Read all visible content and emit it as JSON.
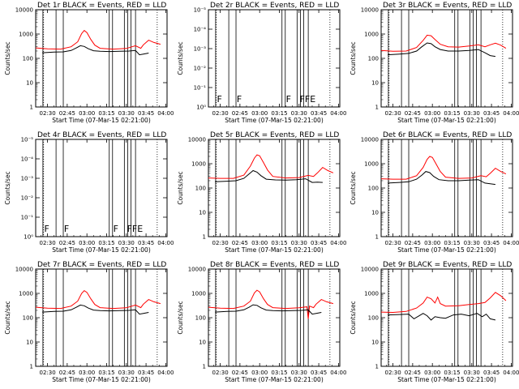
{
  "chart_data": {
    "type": "line",
    "layout": "3x3 grid",
    "x_axis": {
      "label": "Start Time (07-Mar-15 02:21:00)",
      "ticks": [
        "02:30",
        "02:45",
        "03:00",
        "03:15",
        "03:30",
        "03:45",
        "04:00"
      ],
      "tick_minutes": [
        30,
        45,
        60,
        75,
        90,
        105,
        120
      ],
      "range_minutes": [
        21,
        121
      ]
    },
    "y_axis": {
      "label": "Counts/sec",
      "scale": "log",
      "ticks_counts": [
        "1",
        "10",
        "100",
        "1000",
        "10000"
      ],
      "ticks_empty": [
        "10⁻⁵",
        "10⁻⁴",
        "10⁻³",
        "10⁻²",
        "10⁻¹",
        "10⁰"
      ]
    },
    "series_legend": {
      "events_color": "#000000",
      "lld_color": "#ff0000"
    },
    "vertical_markers_minutes": [
      26.5,
      36.5,
      42,
      77,
      79.5,
      88.5,
      91,
      93.5,
      97
    ],
    "dotted_markers_minutes": [
      27,
      113.5
    ],
    "panels": [
      {
        "title": "Det 1r BLACK = Events, RED = LLD",
        "empty": false,
        "events": [
          [
            26,
            170
          ],
          [
            35,
            180
          ],
          [
            42,
            185
          ],
          [
            48,
            210
          ],
          [
            52,
            270
          ],
          [
            55,
            330
          ],
          [
            58,
            310
          ],
          [
            61,
            250
          ],
          [
            65,
            205
          ],
          [
            70,
            195
          ],
          [
            77,
            190
          ],
          [
            85,
            195
          ],
          [
            92,
            200
          ],
          [
            97,
            210
          ],
          [
            100,
            140
          ],
          [
            103,
            150
          ],
          [
            107,
            165
          ]
        ],
        "lld": [
          [
            21,
            270
          ],
          [
            30,
            245
          ],
          [
            40,
            240
          ],
          [
            48,
            300
          ],
          [
            53,
            480
          ],
          [
            56,
            1050
          ],
          [
            58,
            1400
          ],
          [
            60,
            1150
          ],
          [
            63,
            600
          ],
          [
            66,
            350
          ],
          [
            70,
            260
          ],
          [
            80,
            240
          ],
          [
            90,
            255
          ],
          [
            97,
            330
          ],
          [
            101,
            260
          ],
          [
            103,
            360
          ],
          [
            107,
            560
          ],
          [
            111,
            450
          ],
          [
            116,
            380
          ]
        ],
        "flags": []
      },
      {
        "title": "Det 2r BLACK = Events, RED = LLD",
        "empty": true,
        "events": [],
        "lld": [],
        "flags": [
          "F",
          "F",
          "F",
          "FFE"
        ]
      },
      {
        "title": "Det 3r BLACK = Events, RED = LLD",
        "empty": false,
        "events": [
          [
            26,
            140
          ],
          [
            35,
            150
          ],
          [
            42,
            160
          ],
          [
            48,
            200
          ],
          [
            52,
            300
          ],
          [
            56,
            430
          ],
          [
            59,
            400
          ],
          [
            62,
            300
          ],
          [
            66,
            230
          ],
          [
            72,
            200
          ],
          [
            80,
            200
          ],
          [
            88,
            210
          ],
          [
            95,
            230
          ],
          [
            100,
            170
          ],
          [
            104,
            130
          ],
          [
            108,
            120
          ]
        ],
        "lld": [
          [
            21,
            210
          ],
          [
            30,
            195
          ],
          [
            40,
            200
          ],
          [
            48,
            280
          ],
          [
            53,
            550
          ],
          [
            56,
            900
          ],
          [
            59,
            850
          ],
          [
            62,
            600
          ],
          [
            66,
            380
          ],
          [
            72,
            300
          ],
          [
            80,
            290
          ],
          [
            88,
            320
          ],
          [
            95,
            360
          ],
          [
            100,
            300
          ],
          [
            104,
            360
          ],
          [
            108,
            420
          ],
          [
            112,
            350
          ],
          [
            116,
            260
          ]
        ],
        "flags": []
      },
      {
        "title": "Det 4r BLACK = Events, RED = LLD",
        "empty": true,
        "events": [],
        "lld": [],
        "flags": [
          "F",
          "F",
          "F",
          "FFE"
        ]
      },
      {
        "title": "Det 5r BLACK = Events, RED = LLD",
        "empty": false,
        "events": [
          [
            26,
            180
          ],
          [
            35,
            190
          ],
          [
            42,
            200
          ],
          [
            48,
            250
          ],
          [
            52,
            380
          ],
          [
            55,
            520
          ],
          [
            58,
            450
          ],
          [
            61,
            320
          ],
          [
            65,
            230
          ],
          [
            72,
            215
          ],
          [
            80,
            210
          ],
          [
            88,
            220
          ],
          [
            95,
            240
          ],
          [
            100,
            170
          ],
          [
            104,
            175
          ],
          [
            108,
            170
          ]
        ],
        "lld": [
          [
            21,
            260
          ],
          [
            30,
            250
          ],
          [
            40,
            250
          ],
          [
            48,
            340
          ],
          [
            53,
            800
          ],
          [
            56,
            1700
          ],
          [
            58,
            2300
          ],
          [
            60,
            2100
          ],
          [
            63,
            1100
          ],
          [
            66,
            550
          ],
          [
            70,
            300
          ],
          [
            80,
            260
          ],
          [
            90,
            270
          ],
          [
            97,
            330
          ],
          [
            101,
            300
          ],
          [
            104,
            420
          ],
          [
            108,
            700
          ],
          [
            112,
            520
          ],
          [
            116,
            420
          ]
        ],
        "flags": []
      },
      {
        "title": "Det 6r BLACK = Events, RED = LLD",
        "empty": false,
        "events": [
          [
            26,
            160
          ],
          [
            35,
            170
          ],
          [
            42,
            180
          ],
          [
            48,
            230
          ],
          [
            52,
            340
          ],
          [
            55,
            480
          ],
          [
            58,
            430
          ],
          [
            61,
            300
          ],
          [
            65,
            220
          ],
          [
            72,
            200
          ],
          [
            80,
            200
          ],
          [
            88,
            210
          ],
          [
            95,
            220
          ],
          [
            100,
            160
          ],
          [
            104,
            150
          ],
          [
            108,
            140
          ]
        ],
        "lld": [
          [
            21,
            240
          ],
          [
            30,
            230
          ],
          [
            40,
            230
          ],
          [
            48,
            320
          ],
          [
            53,
            700
          ],
          [
            56,
            1500
          ],
          [
            58,
            2000
          ],
          [
            60,
            1800
          ],
          [
            63,
            950
          ],
          [
            66,
            480
          ],
          [
            70,
            280
          ],
          [
            80,
            250
          ],
          [
            90,
            260
          ],
          [
            97,
            320
          ],
          [
            101,
            290
          ],
          [
            104,
            400
          ],
          [
            108,
            650
          ],
          [
            112,
            480
          ],
          [
            116,
            380
          ]
        ],
        "flags": []
      },
      {
        "title": "Det 7r BLACK = Events, RED = LLD",
        "empty": false,
        "events": [
          [
            26,
            170
          ],
          [
            35,
            180
          ],
          [
            42,
            185
          ],
          [
            48,
            210
          ],
          [
            52,
            270
          ],
          [
            55,
            330
          ],
          [
            58,
            310
          ],
          [
            61,
            250
          ],
          [
            65,
            205
          ],
          [
            70,
            195
          ],
          [
            77,
            190
          ],
          [
            85,
            195
          ],
          [
            92,
            200
          ],
          [
            97,
            210
          ],
          [
            100,
            140
          ],
          [
            103,
            150
          ],
          [
            107,
            165
          ]
        ],
        "lld": [
          [
            21,
            270
          ],
          [
            30,
            245
          ],
          [
            40,
            240
          ],
          [
            48,
            300
          ],
          [
            53,
            480
          ],
          [
            56,
            1000
          ],
          [
            58,
            1300
          ],
          [
            60,
            1100
          ],
          [
            63,
            600
          ],
          [
            66,
            350
          ],
          [
            70,
            260
          ],
          [
            80,
            240
          ],
          [
            90,
            255
          ],
          [
            97,
            330
          ],
          [
            101,
            260
          ],
          [
            103,
            360
          ],
          [
            107,
            560
          ],
          [
            111,
            450
          ],
          [
            116,
            380
          ]
        ],
        "flags": []
      },
      {
        "title": "Det 8r BLACK = Events, RED = LLD",
        "empty": false,
        "events": [
          [
            26,
            170
          ],
          [
            35,
            180
          ],
          [
            42,
            185
          ],
          [
            48,
            210
          ],
          [
            52,
            270
          ],
          [
            55,
            340
          ],
          [
            58,
            320
          ],
          [
            61,
            255
          ],
          [
            65,
            205
          ],
          [
            70,
            195
          ],
          [
            77,
            190
          ],
          [
            85,
            195
          ],
          [
            92,
            200
          ],
          [
            97,
            210
          ],
          [
            100,
            140
          ],
          [
            103,
            150
          ],
          [
            107,
            165
          ]
        ],
        "lld": [
          [
            21,
            270
          ],
          [
            30,
            245
          ],
          [
            40,
            240
          ],
          [
            48,
            300
          ],
          [
            53,
            480
          ],
          [
            56,
            1050
          ],
          [
            58,
            1350
          ],
          [
            60,
            1150
          ],
          [
            63,
            600
          ],
          [
            66,
            350
          ],
          [
            70,
            260
          ],
          [
            80,
            240
          ],
          [
            90,
            255
          ],
          [
            96,
            280
          ],
          [
            97,
            90
          ],
          [
            98,
            300
          ],
          [
            101,
            260
          ],
          [
            103,
            360
          ],
          [
            107,
            560
          ],
          [
            111,
            450
          ],
          [
            116,
            380
          ]
        ],
        "flags": []
      },
      {
        "title": "Det 9r BLACK = Events, RED = LLD",
        "empty": false,
        "events": [
          [
            26,
            130
          ],
          [
            35,
            135
          ],
          [
            42,
            140
          ],
          [
            46,
            90
          ],
          [
            50,
            120
          ],
          [
            53,
            150
          ],
          [
            56,
            120
          ],
          [
            59,
            80
          ],
          [
            62,
            110
          ],
          [
            66,
            100
          ],
          [
            70,
            95
          ],
          [
            76,
            130
          ],
          [
            82,
            140
          ],
          [
            88,
            120
          ],
          [
            94,
            150
          ],
          [
            98,
            110
          ],
          [
            101,
            140
          ],
          [
            104,
            90
          ],
          [
            108,
            80
          ]
        ],
        "lld": [
          [
            21,
            170
          ],
          [
            30,
            165
          ],
          [
            40,
            180
          ],
          [
            48,
            250
          ],
          [
            53,
            400
          ],
          [
            56,
            700
          ],
          [
            59,
            600
          ],
          [
            62,
            400
          ],
          [
            64,
            700
          ],
          [
            66,
            380
          ],
          [
            70,
            300
          ],
          [
            80,
            310
          ],
          [
            88,
            350
          ],
          [
            95,
            380
          ],
          [
            100,
            420
          ],
          [
            104,
            650
          ],
          [
            108,
            1100
          ],
          [
            112,
            800
          ],
          [
            116,
            500
          ]
        ],
        "flags": []
      }
    ]
  }
}
